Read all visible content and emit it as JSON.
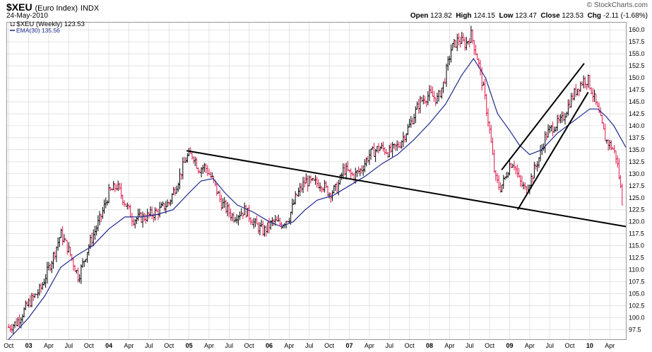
{
  "header": {
    "symbol": "$XEU",
    "name": "(Euro Index)",
    "exchange": "INDX",
    "date": "24-May-2010",
    "brand": "© StockCharts.com",
    "quote": {
      "open_label": "Open",
      "open": "123.82",
      "high_label": "High",
      "high": "124.15",
      "low_label": "Low",
      "low": "123.47",
      "close_label": "Close",
      "close": "123.53",
      "chg_label": "Chg",
      "chg": "-2.11 (-1.68%)"
    }
  },
  "legend": {
    "price_label": "$XEU (Weekly) 123.53",
    "ema_label": "EMA(30) 135.56"
  },
  "colors": {
    "up_bar": "#000000",
    "down_bar": "#e0174a",
    "ema": "#1f2a8c",
    "grid": "#d8d8d8",
    "trendline": "#000000"
  },
  "chart_data": {
    "type": "line",
    "description_type": "weekly OHLC bar chart with EMA overlay and trendlines",
    "x_axis": {
      "ticks": [
        "Oct",
        "03",
        "Apr",
        "Jul",
        "Oct",
        "04",
        "Apr",
        "Jul",
        "Oct",
        "05",
        "Apr",
        "Jul",
        "Oct",
        "06",
        "Apr",
        "Jul",
        "Oct",
        "07",
        "Apr",
        "Jul",
        "Oct",
        "08",
        "Apr",
        "Jul",
        "Oct",
        "09",
        "Apr",
        "Jul",
        "Oct",
        "10",
        "Apr"
      ],
      "tick_times": [
        2002.75,
        2003.0,
        2003.25,
        2003.5,
        2003.75,
        2004.0,
        2004.25,
        2004.5,
        2004.75,
        2005.0,
        2005.25,
        2005.5,
        2005.75,
        2006.0,
        2006.25,
        2006.5,
        2006.75,
        2007.0,
        2007.25,
        2007.5,
        2007.75,
        2008.0,
        2008.25,
        2008.5,
        2008.75,
        2009.0,
        2009.25,
        2009.5,
        2009.75,
        2010.0,
        2010.25
      ],
      "range": [
        2002.73,
        2010.45
      ]
    },
    "y_axis": {
      "range": [
        95.5,
        161.5
      ],
      "ticks": [
        97.5,
        100.0,
        102.5,
        105.0,
        107.5,
        110.0,
        112.5,
        115.0,
        117.5,
        120.0,
        122.5,
        125.0,
        127.5,
        130.0,
        132.5,
        135.0,
        137.5,
        140.0,
        142.5,
        145.0,
        147.5,
        150.0,
        152.5,
        155.0,
        157.5,
        160.0
      ],
      "position": "right"
    },
    "grid": true,
    "price_anchors": [
      [
        2002.75,
        98.0
      ],
      [
        2002.85,
        99.0
      ],
      [
        2003.0,
        103.0
      ],
      [
        2003.15,
        106.0
      ],
      [
        2003.3,
        112.5
      ],
      [
        2003.4,
        117.5
      ],
      [
        2003.5,
        114.0
      ],
      [
        2003.62,
        108.5
      ],
      [
        2003.75,
        115.0
      ],
      [
        2003.9,
        121.0
      ],
      [
        2004.0,
        126.0
      ],
      [
        2004.1,
        127.5
      ],
      [
        2004.2,
        124.0
      ],
      [
        2004.3,
        120.5
      ],
      [
        2004.45,
        121.0
      ],
      [
        2004.6,
        122.0
      ],
      [
        2004.75,
        124.0
      ],
      [
        2004.85,
        128.0
      ],
      [
        2004.97,
        133.5
      ],
      [
        2005.05,
        134.0
      ],
      [
        2005.12,
        131.0
      ],
      [
        2005.2,
        131.5
      ],
      [
        2005.3,
        128.5
      ],
      [
        2005.4,
        124.0
      ],
      [
        2005.55,
        121.0
      ],
      [
        2005.7,
        122.5
      ],
      [
        2005.82,
        119.5
      ],
      [
        2005.93,
        118.0
      ],
      [
        2006.05,
        120.0
      ],
      [
        2006.15,
        119.5
      ],
      [
        2006.25,
        121.0
      ],
      [
        2006.33,
        125.0
      ],
      [
        2006.45,
        128.5
      ],
      [
        2006.55,
        128.0
      ],
      [
        2006.65,
        128.0
      ],
      [
        2006.75,
        126.0
      ],
      [
        2006.85,
        127.0
      ],
      [
        2006.93,
        131.0
      ],
      [
        2007.05,
        129.5
      ],
      [
        2007.15,
        131.0
      ],
      [
        2007.25,
        134.0
      ],
      [
        2007.38,
        135.5
      ],
      [
        2007.5,
        134.5
      ],
      [
        2007.62,
        136.0
      ],
      [
        2007.75,
        140.0
      ],
      [
        2007.88,
        145.0
      ],
      [
        2008.0,
        146.5
      ],
      [
        2008.1,
        145.5
      ],
      [
        2008.18,
        149.0
      ],
      [
        2008.27,
        156.0
      ],
      [
        2008.36,
        158.0
      ],
      [
        2008.45,
        157.0
      ],
      [
        2008.52,
        159.0
      ],
      [
        2008.6,
        154.0
      ],
      [
        2008.68,
        147.0
      ],
      [
        2008.75,
        139.0
      ],
      [
        2008.82,
        129.0
      ],
      [
        2008.88,
        127.0
      ],
      [
        2008.93,
        128.5
      ],
      [
        2009.0,
        132.0
      ],
      [
        2009.05,
        132.5
      ],
      [
        2009.12,
        128.5
      ],
      [
        2009.2,
        126.5
      ],
      [
        2009.28,
        129.5
      ],
      [
        2009.38,
        134.0
      ],
      [
        2009.45,
        138.0
      ],
      [
        2009.55,
        140.0
      ],
      [
        2009.65,
        141.0
      ],
      [
        2009.75,
        145.0
      ],
      [
        2009.85,
        148.0
      ],
      [
        2009.92,
        149.5
      ],
      [
        2009.98,
        149.5
      ],
      [
        2010.05,
        146.0
      ],
      [
        2010.12,
        142.0
      ],
      [
        2010.2,
        137.0
      ],
      [
        2010.28,
        135.5
      ],
      [
        2010.33,
        133.5
      ],
      [
        2010.37,
        129.0
      ],
      [
        2010.41,
        123.5
      ]
    ],
    "ema_anchors": [
      [
        2002.75,
        95.5
      ],
      [
        2003.0,
        100.0
      ],
      [
        2003.2,
        104.5
      ],
      [
        2003.4,
        110.5
      ],
      [
        2003.6,
        113.0
      ],
      [
        2003.8,
        115.0
      ],
      [
        2004.0,
        118.5
      ],
      [
        2004.2,
        121.0
      ],
      [
        2004.4,
        121.0
      ],
      [
        2004.6,
        121.5
      ],
      [
        2004.8,
        122.5
      ],
      [
        2005.0,
        126.0
      ],
      [
        2005.15,
        128.5
      ],
      [
        2005.3,
        129.0
      ],
      [
        2005.45,
        126.0
      ],
      [
        2005.6,
        123.5
      ],
      [
        2005.8,
        122.0
      ],
      [
        2006.0,
        120.0
      ],
      [
        2006.15,
        119.0
      ],
      [
        2006.3,
        120.0
      ],
      [
        2006.45,
        122.5
      ],
      [
        2006.6,
        124.5
      ],
      [
        2006.8,
        125.5
      ],
      [
        2007.0,
        127.5
      ],
      [
        2007.2,
        129.5
      ],
      [
        2007.4,
        132.0
      ],
      [
        2007.6,
        134.0
      ],
      [
        2007.8,
        137.0
      ],
      [
        2008.0,
        140.5
      ],
      [
        2008.2,
        144.5
      ],
      [
        2008.4,
        150.5
      ],
      [
        2008.55,
        154.0
      ],
      [
        2008.7,
        150.0
      ],
      [
        2008.85,
        142.5
      ],
      [
        2009.0,
        139.0
      ],
      [
        2009.12,
        136.0
      ],
      [
        2009.25,
        134.0
      ],
      [
        2009.4,
        135.0
      ],
      [
        2009.6,
        138.5
      ],
      [
        2009.8,
        141.0
      ],
      [
        2010.0,
        143.5
      ],
      [
        2010.1,
        143.5
      ],
      [
        2010.2,
        142.0
      ],
      [
        2010.3,
        140.0
      ],
      [
        2010.45,
        135.5
      ]
    ],
    "trendlines": [
      {
        "name": "descending support",
        "points": [
          [
            2004.97,
            134.8
          ],
          [
            2010.45,
            119.0
          ]
        ]
      },
      {
        "name": "wedge upper",
        "points": [
          [
            2008.9,
            130.8
          ],
          [
            2009.93,
            153.0
          ]
        ]
      },
      {
        "name": "wedge lower",
        "points": [
          [
            2009.1,
            122.5
          ],
          [
            2009.98,
            147.0
          ]
        ]
      }
    ]
  }
}
